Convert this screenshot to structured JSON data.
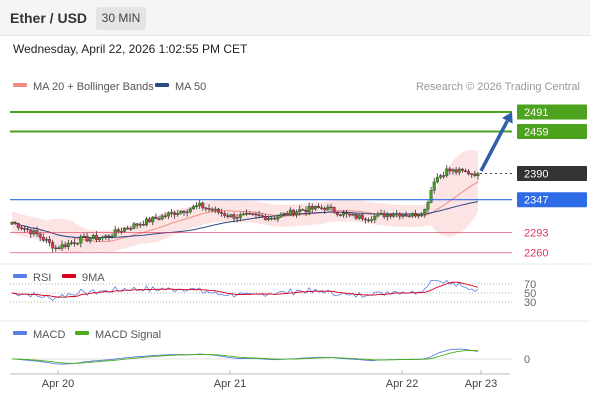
{
  "header": {
    "title": "Ether / USD",
    "timeframe": "30 MIN"
  },
  "timestamp": "Wednesday, April 22, 2026 1:02:55 PM CET",
  "main_legend": {
    "ma20_label": "MA 20 + Bollinger Bands",
    "ma20_color": "#f28b82",
    "ma50_label": "MA 50",
    "ma50_color": "#2c4a86",
    "credit": "Research © 2026 Trading Central"
  },
  "rsi_legend": {
    "rsi_label": "RSI",
    "rsi_color": "#5b7fe0",
    "ma_label": "9MA",
    "ma_color": "#d9001b"
  },
  "macd_legend": {
    "macd_label": "MACD",
    "macd_color": "#5b7fe0",
    "signal_label": "MACD Signal",
    "signal_color": "#4caf1a"
  },
  "chart_data": [
    {
      "type": "candlestick",
      "x_ticks": [
        "Apr 20",
        "Apr 21",
        "Apr 22",
        "Apr 23"
      ],
      "levels": [
        {
          "value": 2491,
          "label": "2491",
          "style": "resistance",
          "color": "#4ca21c"
        },
        {
          "value": 2459,
          "label": "2459",
          "style": "resistance",
          "color": "#4ca21c"
        },
        {
          "value": 2390,
          "label": "2390",
          "style": "last-price",
          "color": "#333333"
        },
        {
          "value": 2347,
          "label": "2347",
          "style": "pivot",
          "color": "#2e6be6"
        },
        {
          "value": 2293,
          "label": "2293",
          "style": "support",
          "color": "#e0335c"
        },
        {
          "value": 2260,
          "label": "2260",
          "style": "support",
          "color": "#e0335c"
        }
      ],
      "forecast_target": 2491,
      "candle_colors": {
        "up": "#3fa318",
        "down": "#e0335c"
      }
    },
    {
      "type": "line",
      "name": "RSI",
      "y_ticks": [
        70,
        50,
        30
      ],
      "ylim": [
        0,
        100
      ]
    },
    {
      "type": "line",
      "name": "MACD",
      "y_ticks": [
        0
      ]
    }
  ]
}
